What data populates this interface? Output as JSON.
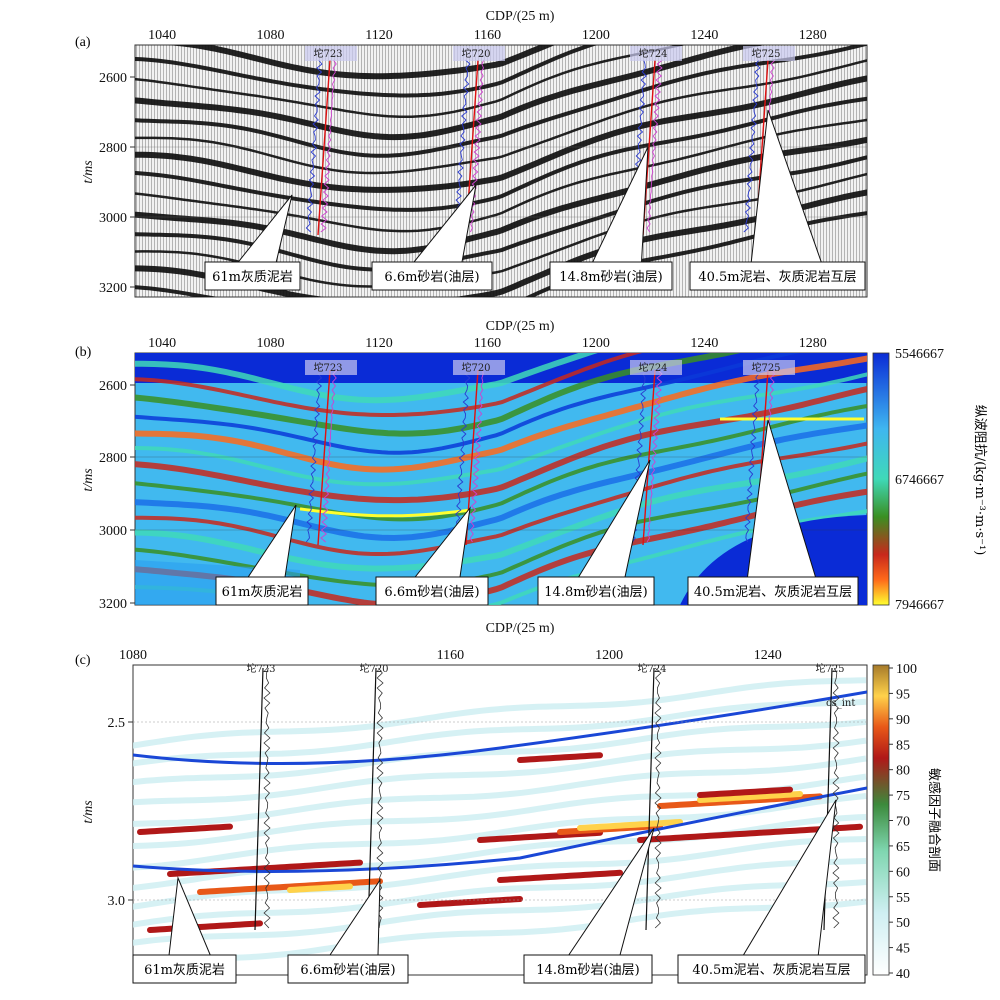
{
  "panels": [
    {
      "id": "a",
      "label": "(a)",
      "x_title": "CDP/(25 m)",
      "y_title": "t/ms",
      "x_ticks": [
        1040,
        1080,
        1120,
        1160,
        1200,
        1240,
        1280
      ],
      "y_ticks": [
        2600,
        2800,
        3000,
        3200
      ],
      "wells": [
        "坨723",
        "坨720",
        "坨724",
        "坨725"
      ],
      "annotations": [
        "61m灰质泥岩",
        "6.6m砂岩(油层)",
        "14.8m砂岩(油层)",
        "40.5m泥岩、灰质泥岩互层"
      ]
    },
    {
      "id": "b",
      "label": "(b)",
      "x_title": "CDP/(25 m)",
      "y_title": "t/ms",
      "x_ticks": [
        1040,
        1080,
        1120,
        1160,
        1200,
        1240,
        1280
      ],
      "y_ticks": [
        2600,
        2800,
        3000,
        3200
      ],
      "wells": [
        "坨723",
        "坨720",
        "坨724",
        "坨725"
      ],
      "annotations": [
        "61m灰质泥岩",
        "6.6m砂岩(油层)",
        "14.8m砂岩(油层)",
        "40.5m泥岩、灰质泥岩互层"
      ],
      "colorbar": {
        "title": "纵波阻抗/(kg·m⁻³·m·s⁻¹)",
        "ticks": [
          "5546667",
          "6746667",
          "7946667"
        ]
      }
    },
    {
      "id": "c",
      "label": "(c)",
      "x_title": "CDP/(25 m)",
      "y_title": "t/ms",
      "x_ticks": [
        1080,
        1160,
        1200,
        1240
      ],
      "y_ticks": [
        "2.5",
        "3.0"
      ],
      "wells": [
        "坨723",
        "坨720",
        "坨724",
        "坨725"
      ],
      "log_label": "cs_int",
      "annotations": [
        "61m灰质泥岩",
        "6.6m砂岩(油层)",
        "14.8m砂岩(油层)",
        "40.5m泥岩、灰质泥岩互层"
      ],
      "colorbar": {
        "title": "敏感因子融合剖面",
        "ticks": [
          "100",
          "95",
          "90",
          "85",
          "80",
          "75",
          "70",
          "65",
          "60",
          "55",
          "50",
          "45",
          "40"
        ]
      }
    }
  ],
  "colors": {
    "impedance_scale": [
      "#0a2bd6",
      "#3fb6f0",
      "#3fd9b8",
      "#3a8f22",
      "#c8281c",
      "#ff6a1a",
      "#ffff30"
    ],
    "fusion_scale": [
      "#ffffff",
      "#cfeff2",
      "#7fd6b0",
      "#3c8a3c",
      "#b01818",
      "#e85818",
      "#ffd24a",
      "#a67a2a"
    ],
    "horizon": "#1a47d6"
  }
}
